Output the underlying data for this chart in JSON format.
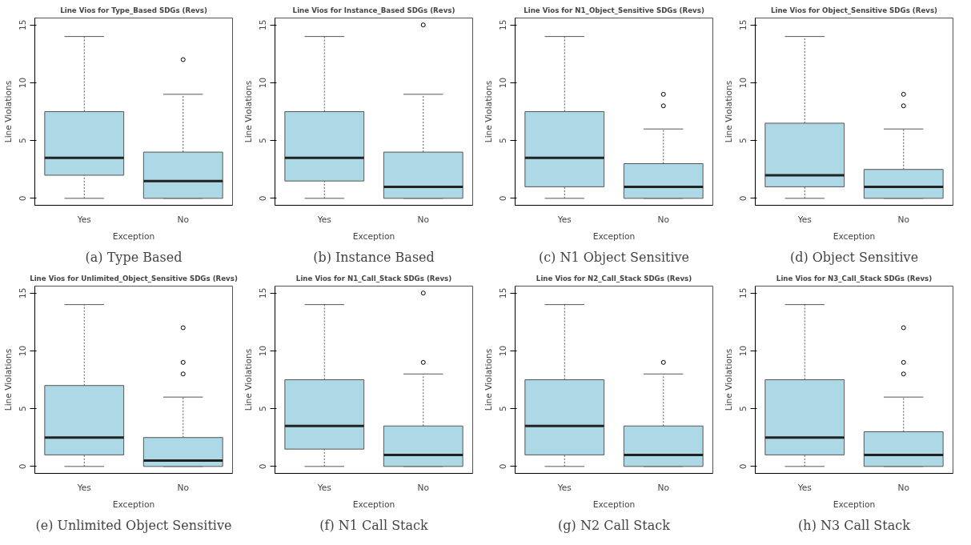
{
  "chart_data": [
    {
      "type": "box",
      "title": "Line Vios for Type_Based SDGs (Revs)",
      "xlabel": "Exception",
      "ylabel": "Line Violations",
      "categories": [
        "Yes",
        "No"
      ],
      "color": "#add8e6",
      "ylim": [
        -0.6,
        15.6
      ],
      "yticks": [
        0,
        5,
        10,
        15
      ],
      "annotations": [
        "(a) Type Based"
      ],
      "boxes": [
        {
          "low": 0,
          "q1": 2,
          "median": 3.5,
          "q3": 7.5,
          "high": 14
        },
        {
          "low": 0,
          "q1": 0,
          "median": 1.5,
          "q3": 4,
          "high": 9,
          "outliers": [
            12
          ]
        }
      ]
    },
    {
      "type": "box",
      "title": "Line Vios for Instance_Based SDGs (Revs)",
      "xlabel": "Exception",
      "ylabel": "Line Violations",
      "categories": [
        "Yes",
        "No"
      ],
      "color": "#add8e6",
      "ylim": [
        -0.6,
        15.6
      ],
      "yticks": [
        0,
        5,
        10,
        15
      ],
      "annotations": [
        "(b) Instance Based"
      ],
      "boxes": [
        {
          "low": 0,
          "q1": 1.5,
          "median": 3.5,
          "q3": 7.5,
          "high": 14
        },
        {
          "low": 0,
          "q1": 0,
          "median": 1,
          "q3": 4,
          "high": 9,
          "outliers": [
            15
          ]
        }
      ]
    },
    {
      "type": "box",
      "title": "Line Vios for N1_Object_Sensitive SDGs (Revs)",
      "xlabel": "Exception",
      "ylabel": "Line Violations",
      "categories": [
        "Yes",
        "No"
      ],
      "color": "#add8e6",
      "ylim": [
        -0.6,
        15.6
      ],
      "yticks": [
        0,
        5,
        10,
        15
      ],
      "annotations": [
        "(c) N1 Object Sensitive"
      ],
      "boxes": [
        {
          "low": 0,
          "q1": 1,
          "median": 3.5,
          "q3": 7.5,
          "high": 14
        },
        {
          "low": 0,
          "q1": 0,
          "median": 1,
          "q3": 3,
          "high": 6,
          "outliers": [
            8,
            9
          ]
        }
      ]
    },
    {
      "type": "box",
      "title": "Line Vios for Object_Sensitive SDGs (Revs)",
      "xlabel": "Exception",
      "ylabel": "Line Violations",
      "categories": [
        "Yes",
        "No"
      ],
      "color": "#add8e6",
      "ylim": [
        -0.6,
        15.6
      ],
      "yticks": [
        0,
        5,
        10,
        15
      ],
      "annotations": [
        "(d) Object Sensitive"
      ],
      "boxes": [
        {
          "low": 0,
          "q1": 1,
          "median": 2,
          "q3": 6.5,
          "high": 14
        },
        {
          "low": 0,
          "q1": 0,
          "median": 1,
          "q3": 2.5,
          "high": 6,
          "outliers": [
            8,
            9
          ]
        }
      ]
    },
    {
      "type": "box",
      "title": "Line Vios for Unlimited_Object_Sensitive SDGs (Revs)",
      "xlabel": "Exception",
      "ylabel": "Line Violations",
      "categories": [
        "Yes",
        "No"
      ],
      "color": "#add8e6",
      "ylim": [
        -0.6,
        15.6
      ],
      "yticks": [
        0,
        5,
        10,
        15
      ],
      "annotations": [
        "(e) Unlimited Object Sensitive"
      ],
      "boxes": [
        {
          "low": 0,
          "q1": 1,
          "median": 2.5,
          "q3": 7,
          "high": 14
        },
        {
          "low": 0,
          "q1": 0,
          "median": 0.5,
          "q3": 2.5,
          "high": 6,
          "outliers": [
            8,
            9,
            12
          ]
        }
      ]
    },
    {
      "type": "box",
      "title": "Line Vios for N1_Call_Stack SDGs (Revs)",
      "xlabel": "Exception",
      "ylabel": "Line Violations",
      "categories": [
        "Yes",
        "No"
      ],
      "color": "#add8e6",
      "ylim": [
        -0.6,
        15.6
      ],
      "yticks": [
        0,
        5,
        10,
        15
      ],
      "annotations": [
        "(f) N1 Call Stack"
      ],
      "boxes": [
        {
          "low": 0,
          "q1": 1.5,
          "median": 3.5,
          "q3": 7.5,
          "high": 14
        },
        {
          "low": 0,
          "q1": 0,
          "median": 1,
          "q3": 3.5,
          "high": 8,
          "outliers": [
            9,
            15
          ]
        }
      ]
    },
    {
      "type": "box",
      "title": "Line Vios for N2_Call_Stack SDGs (Revs)",
      "xlabel": "Exception",
      "ylabel": "Line Violations",
      "categories": [
        "Yes",
        "No"
      ],
      "color": "#add8e6",
      "ylim": [
        -0.6,
        15.6
      ],
      "yticks": [
        0,
        5,
        10,
        15
      ],
      "annotations": [
        "(g) N2 Call Stack"
      ],
      "boxes": [
        {
          "low": 0,
          "q1": 1,
          "median": 3.5,
          "q3": 7.5,
          "high": 14
        },
        {
          "low": 0,
          "q1": 0,
          "median": 1,
          "q3": 3.5,
          "high": 8,
          "outliers": [
            9
          ]
        }
      ]
    },
    {
      "type": "box",
      "title": "Line Vios for N3_Call_Stack SDGs (Revs)",
      "xlabel": "Exception",
      "ylabel": "Line Violations",
      "categories": [
        "Yes",
        "No"
      ],
      "color": "#add8e6",
      "ylim": [
        -0.6,
        15.6
      ],
      "yticks": [
        0,
        5,
        10,
        15
      ],
      "annotations": [
        "(h) N3 Call Stack"
      ],
      "boxes": [
        {
          "low": 0,
          "q1": 1,
          "median": 2.5,
          "q3": 7.5,
          "high": 14
        },
        {
          "low": 0,
          "q1": 0,
          "median": 1,
          "q3": 3,
          "high": 6,
          "outliers": [
            8,
            9,
            12
          ]
        }
      ]
    }
  ]
}
